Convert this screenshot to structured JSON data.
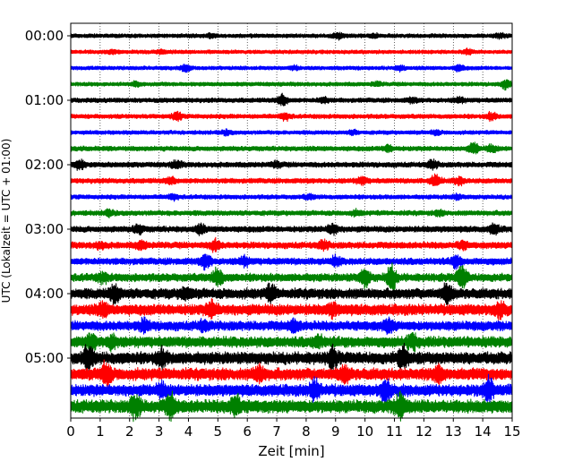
{
  "chart_data": {
    "type": "line",
    "title": "",
    "xlabel": "Zeit  [min]",
    "ylabel": "UTC (Lokalzeit = UTC + 01:00)",
    "xlim": [
      0,
      15
    ],
    "x_ticks": [
      0,
      1,
      2,
      3,
      4,
      5,
      6,
      7,
      8,
      9,
      10,
      11,
      12,
      13,
      14,
      15
    ],
    "x_tick_labels": [
      "0",
      "1",
      "2",
      "3",
      "4",
      "5",
      "6",
      "7",
      "8",
      "9",
      "10",
      "11",
      "12",
      "13",
      "14",
      "15"
    ],
    "y_tick_labels": [
      "00:00",
      "01:00",
      "02:00",
      "03:00",
      "04:00",
      "05:00"
    ],
    "trace_minutes": 15,
    "trace_colors": [
      "#000000",
      "#ff0000",
      "#0000ff",
      "#008000"
    ],
    "grid": "vertical dotted",
    "trace_start_times": [
      "00:00",
      "00:15",
      "00:30",
      "00:45",
      "01:00",
      "01:15",
      "01:30",
      "01:45",
      "02:00",
      "02:15",
      "02:30",
      "02:45",
      "03:00",
      "03:15",
      "03:30",
      "03:45",
      "04:00",
      "04:15",
      "04:30",
      "04:45",
      "05:00",
      "05:15",
      "05:30",
      "05:45"
    ],
    "trace_amplitude": [
      2.0,
      1.9,
      1.9,
      2.0,
      2.3,
      2.2,
      2.0,
      2.4,
      2.6,
      2.5,
      2.2,
      2.5,
      3.0,
      3.2,
      3.4,
      4.0,
      5.2,
      5.5,
      4.8,
      5.4,
      6.0,
      6.0,
      5.8,
      6.5
    ],
    "events": [
      [
        [
          4.8,
          0.8
        ],
        [
          9.1,
          1.4
        ],
        [
          10.3,
          0.8
        ],
        [
          14.6,
          0.9
        ]
      ],
      [
        [
          1.4,
          0.7
        ],
        [
          3.1,
          0.8
        ],
        [
          13.5,
          1.0
        ]
      ],
      [
        [
          3.9,
          1.8
        ],
        [
          7.6,
          0.9
        ],
        [
          11.2,
          1.1
        ],
        [
          13.2,
          1.4
        ]
      ],
      [
        [
          2.2,
          0.8
        ],
        [
          10.4,
          0.8
        ],
        [
          14.8,
          2.0
        ]
      ],
      [
        [
          7.2,
          2.0
        ],
        [
          8.6,
          1.0
        ],
        [
          11.6,
          0.8
        ],
        [
          13.2,
          0.9
        ]
      ],
      [
        [
          3.6,
          1.8
        ],
        [
          7.3,
          1.4
        ],
        [
          14.3,
          1.4
        ]
      ],
      [
        [
          5.3,
          0.9
        ],
        [
          9.6,
          0.8
        ],
        [
          12.4,
          0.9
        ]
      ],
      [
        [
          10.8,
          1.2
        ],
        [
          13.7,
          2.0
        ],
        [
          14.3,
          1.2
        ]
      ],
      [
        [
          0.3,
          1.6
        ],
        [
          3.6,
          1.2
        ],
        [
          7.0,
          0.9
        ],
        [
          12.3,
          1.4
        ]
      ],
      [
        [
          3.4,
          1.0
        ],
        [
          9.9,
          1.2
        ],
        [
          12.4,
          2.2
        ],
        [
          13.2,
          1.3
        ]
      ],
      [
        [
          3.5,
          1.0
        ],
        [
          8.1,
          0.8
        ],
        [
          13.1,
          0.8
        ]
      ],
      [
        [
          1.3,
          0.8
        ],
        [
          9.7,
          0.7
        ],
        [
          12.5,
          0.7
        ]
      ],
      [
        [
          2.3,
          1.3
        ],
        [
          4.4,
          1.2
        ],
        [
          8.9,
          1.6
        ],
        [
          14.4,
          1.3
        ]
      ],
      [
        [
          1.0,
          0.8
        ],
        [
          2.4,
          1.0
        ],
        [
          4.9,
          1.5
        ],
        [
          8.6,
          1.1
        ],
        [
          13.3,
          1.0
        ]
      ],
      [
        [
          4.6,
          1.9
        ],
        [
          5.9,
          1.0
        ],
        [
          9.0,
          1.1
        ],
        [
          13.1,
          1.4
        ]
      ],
      [
        [
          1.1,
          0.9
        ],
        [
          5.0,
          1.9
        ],
        [
          10.0,
          1.9
        ],
        [
          10.9,
          2.7
        ],
        [
          13.3,
          2.6
        ]
      ],
      [
        [
          1.5,
          1.5
        ],
        [
          3.9,
          0.9
        ],
        [
          6.8,
          1.2
        ],
        [
          12.8,
          1.5
        ]
      ],
      [
        [
          1.1,
          0.9
        ],
        [
          4.8,
          1.1
        ],
        [
          8.9,
          0.8
        ],
        [
          14.6,
          1.0
        ]
      ],
      [
        [
          2.5,
          0.9
        ],
        [
          4.5,
          0.7
        ],
        [
          7.6,
          0.9
        ],
        [
          10.8,
          1.0
        ]
      ],
      [
        [
          0.7,
          1.1
        ],
        [
          1.4,
          1.0
        ],
        [
          8.4,
          0.8
        ],
        [
          11.6,
          1.2
        ]
      ],
      [
        [
          0.6,
          1.6
        ],
        [
          3.1,
          1.0
        ],
        [
          8.9,
          1.2
        ],
        [
          11.3,
          1.8
        ]
      ],
      [
        [
          1.2,
          1.6
        ],
        [
          6.4,
          1.0
        ],
        [
          9.3,
          1.0
        ],
        [
          12.5,
          1.0
        ]
      ],
      [
        [
          3.1,
          0.8
        ],
        [
          8.3,
          1.4
        ],
        [
          10.7,
          1.6
        ],
        [
          14.2,
          1.6
        ]
      ],
      [
        [
          2.2,
          1.5
        ],
        [
          3.4,
          1.4
        ],
        [
          5.6,
          1.3
        ],
        [
          11.2,
          1.7
        ]
      ]
    ]
  }
}
